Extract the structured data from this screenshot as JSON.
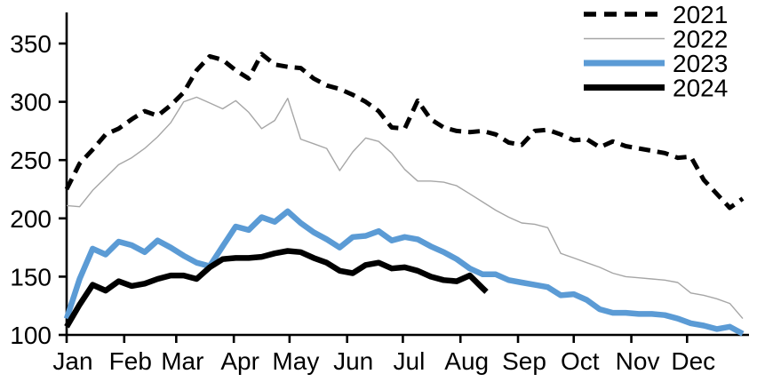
{
  "chart_data": {
    "type": "line",
    "title": "",
    "xlabel": "",
    "ylabel": "",
    "grid": false,
    "x_axis": {
      "tick_labels": [
        "Jan",
        "Feb",
        "Mar",
        "Apr",
        "May",
        "Jun",
        "Jul",
        "Aug",
        "Sep",
        "Oct",
        "Nov",
        "Dec"
      ],
      "tick_days": [
        0,
        31,
        59,
        90,
        120,
        151,
        181,
        212,
        243,
        273,
        304,
        334
      ],
      "domain_days": [
        0,
        364
      ]
    },
    "y_axis": {
      "ticks": [
        100,
        150,
        200,
        250,
        300,
        350
      ],
      "ylim": [
        100,
        377
      ]
    },
    "legend": {
      "position": "top-right",
      "entries": [
        "2021",
        "2022",
        "2023",
        "2024"
      ]
    },
    "series": [
      {
        "name": "2021",
        "color": "#000000",
        "dashed": true,
        "line_width": 5,
        "days": [
          0,
          7,
          14,
          21,
          28,
          35,
          42,
          49,
          56,
          63,
          70,
          77,
          84,
          91,
          98,
          105,
          112,
          119,
          126,
          133,
          140,
          147,
          154,
          161,
          168,
          175,
          182,
          189,
          196,
          203,
          210,
          217,
          224,
          231,
          238,
          245,
          252,
          259,
          266,
          273,
          280,
          287,
          294,
          301,
          308,
          315,
          322,
          329,
          336,
          343,
          350,
          357,
          364
        ],
        "values": [
          225,
          247,
          259,
          272,
          277,
          285,
          292,
          288,
          297,
          308,
          327,
          339,
          336,
          327,
          320,
          341,
          332,
          330,
          329,
          320,
          314,
          311,
          306,
          300,
          292,
          278,
          277,
          301,
          285,
          278,
          275,
          274,
          275,
          272,
          265,
          263,
          275,
          276,
          272,
          267,
          268,
          261,
          266,
          262,
          260,
          258,
          256,
          252,
          253,
          233,
          221,
          209,
          217
        ]
      },
      {
        "name": "2022",
        "color": "#A6A6A6",
        "dashed": false,
        "line_width": 1.4,
        "days": [
          0,
          7,
          14,
          21,
          28,
          35,
          42,
          49,
          56,
          63,
          70,
          77,
          84,
          91,
          98,
          105,
          112,
          119,
          126,
          133,
          140,
          147,
          154,
          161,
          168,
          175,
          182,
          189,
          196,
          203,
          210,
          217,
          224,
          231,
          238,
          245,
          252,
          259,
          266,
          273,
          280,
          287,
          294,
          301,
          308,
          315,
          322,
          329,
          336,
          343,
          350,
          357,
          364
        ],
        "values": [
          211,
          210,
          224,
          235,
          246,
          252,
          260,
          270,
          282,
          300,
          304,
          299,
          294,
          301,
          291,
          277,
          284,
          303,
          268,
          264,
          260,
          241,
          257,
          269,
          266,
          256,
          242,
          232,
          232,
          231,
          228,
          221,
          214,
          207,
          201,
          196,
          195,
          192,
          170,
          166,
          162,
          158,
          153,
          150,
          149,
          148,
          147,
          145,
          136,
          134,
          131,
          127,
          114
        ]
      },
      {
        "name": "2023",
        "color": "#5B9BD5",
        "dashed": false,
        "line_width": 6.5,
        "days": [
          0,
          7,
          14,
          21,
          28,
          35,
          42,
          49,
          56,
          63,
          70,
          77,
          84,
          91,
          98,
          105,
          112,
          119,
          126,
          133,
          140,
          147,
          154,
          161,
          168,
          175,
          182,
          189,
          196,
          203,
          210,
          217,
          224,
          231,
          238,
          245,
          252,
          259,
          266,
          273,
          280,
          287,
          294,
          301,
          308,
          315,
          322,
          329,
          336,
          343,
          350,
          357,
          364
        ],
        "values": [
          114,
          148,
          174,
          169,
          180,
          177,
          171,
          181,
          175,
          168,
          162,
          159,
          176,
          193,
          190,
          201,
          197,
          206,
          196,
          188,
          182,
          175,
          184,
          185,
          189,
          181,
          184,
          182,
          176,
          171,
          165,
          157,
          152,
          152,
          147,
          145,
          143,
          141,
          134,
          135,
          130,
          122,
          119,
          119,
          118,
          118,
          117,
          114,
          110,
          108,
          105,
          107,
          101
        ]
      },
      {
        "name": "2024",
        "color": "#000000",
        "dashed": false,
        "line_width": 6.5,
        "days": [
          0,
          7,
          14,
          21,
          28,
          35,
          42,
          49,
          56,
          63,
          70,
          77,
          84,
          91,
          98,
          105,
          112,
          119,
          126,
          133,
          140,
          147,
          154,
          161,
          168,
          175,
          182,
          189,
          196,
          203,
          210,
          217,
          224,
          226
        ],
        "values": [
          107,
          126,
          143,
          138,
          146,
          142,
          144,
          148,
          151,
          151,
          148,
          158,
          165,
          166,
          166,
          167,
          170,
          172,
          171,
          166,
          162,
          155,
          153,
          160,
          162,
          157,
          158,
          155,
          150,
          147,
          146,
          151,
          140,
          137
        ]
      }
    ]
  }
}
